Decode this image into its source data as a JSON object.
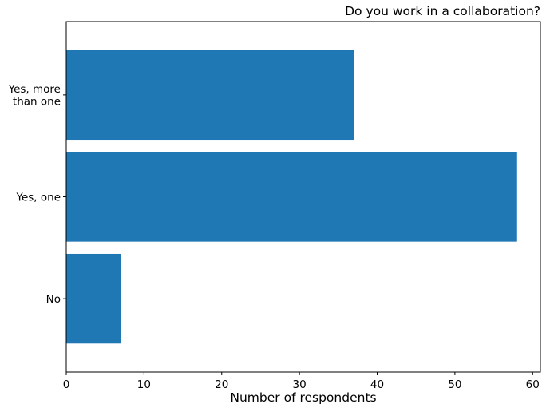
{
  "chart_data": {
    "type": "bar",
    "orientation": "horizontal",
    "title": "Do you work in a collaboration?",
    "xlabel": "Number of respondents",
    "ylabel": "",
    "categories": [
      "No",
      "Yes, one",
      "Yes, more than one"
    ],
    "category_label_lines": [
      [
        "No"
      ],
      [
        "Yes, one"
      ],
      [
        "Yes, more",
        "than one"
      ]
    ],
    "values": [
      7,
      58,
      37
    ],
    "xlim": [
      0,
      61
    ],
    "xticks": [
      0,
      10,
      20,
      30,
      40,
      50,
      60
    ],
    "bar_color": "#1f77b4",
    "grid": false,
    "legend": "none"
  }
}
